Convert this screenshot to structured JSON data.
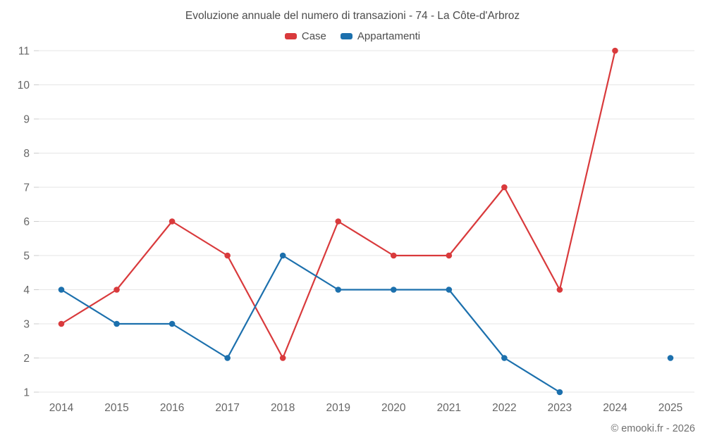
{
  "title": "Evoluzione annuale del numero di transazioni - 74 - La Côte-d'Arbroz",
  "footer": "© emooki.fr - 2026",
  "legend": [
    {
      "label": "Case",
      "color": "#d93a3c"
    },
    {
      "label": "Appartamenti",
      "color": "#1c70ad"
    }
  ],
  "chart_data": {
    "type": "line",
    "title": "Evoluzione annuale del numero di transazioni - 74 - La Côte-d'Arbroz",
    "categories": [
      "2014",
      "2015",
      "2016",
      "2017",
      "2018",
      "2019",
      "2020",
      "2021",
      "2022",
      "2023",
      "2024",
      "2025"
    ],
    "series": [
      {
        "name": "Case",
        "color": "#d93a3c",
        "values": [
          3,
          4,
          6,
          5,
          2,
          6,
          5,
          5,
          7,
          4,
          11,
          null
        ]
      },
      {
        "name": "Appartamenti",
        "color": "#1c70ad",
        "values": [
          4,
          3,
          3,
          2,
          5,
          4,
          4,
          4,
          2,
          1,
          null,
          2
        ]
      }
    ],
    "xlabel": "",
    "ylabel": "",
    "ylim": [
      1,
      11
    ],
    "yticks": [
      1,
      2,
      3,
      4,
      5,
      6,
      7,
      8,
      9,
      10,
      11
    ],
    "grid": true,
    "grid_color": "#e6e6e6",
    "tick_color": "#cccccc",
    "label_color": "#666666",
    "legend_position": "top",
    "marker": "circle",
    "marker_radius": 4.3,
    "line_width": 2.2
  }
}
